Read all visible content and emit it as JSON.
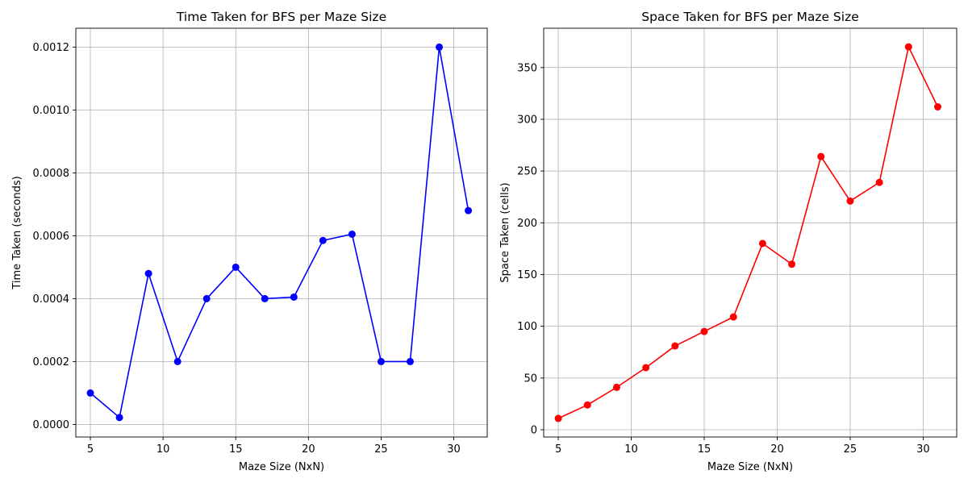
{
  "chart_data": [
    {
      "type": "line",
      "title": "Time Taken for BFS per Maze Size",
      "xlabel": "Maze Size (NxN)",
      "ylabel": "Time Taken (seconds)",
      "xlim": [
        4,
        32.3
      ],
      "ylim": [
        -4e-05,
        0.00126
      ],
      "xticks": [
        5,
        10,
        15,
        20,
        25,
        30
      ],
      "xtick_labels": [
        "5",
        "10",
        "15",
        "20",
        "25",
        "30"
      ],
      "yticks": [
        0,
        0.0002,
        0.0004,
        0.0006,
        0.0008,
        0.001,
        0.0012
      ],
      "ytick_labels": [
        "0.0000",
        "0.0002",
        "0.0004",
        "0.0006",
        "0.0008",
        "0.0010",
        "0.0012"
      ],
      "grid": true,
      "series": [
        {
          "color": "#0000ff",
          "marker": "circle",
          "x": [
            5,
            7,
            9,
            11,
            13,
            15,
            17,
            19,
            21,
            23,
            25,
            27,
            29,
            31
          ],
          "y": [
            0.0001,
            2.2e-05,
            0.00048,
            0.0002,
            0.0004,
            0.0005,
            0.0004,
            0.000405,
            0.000585,
            0.000605,
            0.0002,
            0.0002,
            0.0012,
            0.00068
          ]
        }
      ]
    },
    {
      "type": "line",
      "title": "Space Taken for BFS per Maze Size",
      "xlabel": "Maze Size (NxN)",
      "ylabel": "Space Taken (cells)",
      "xlim": [
        4,
        32.3
      ],
      "ylim": [
        -7,
        388
      ],
      "xticks": [
        5,
        10,
        15,
        20,
        25,
        30
      ],
      "xtick_labels": [
        "5",
        "10",
        "15",
        "20",
        "25",
        "30"
      ],
      "yticks": [
        0,
        50,
        100,
        150,
        200,
        250,
        300,
        350
      ],
      "ytick_labels": [
        "0",
        "50",
        "100",
        "150",
        "200",
        "250",
        "300",
        "350"
      ],
      "grid": true,
      "series": [
        {
          "color": "#ff0000",
          "marker": "circle",
          "x": [
            5,
            7,
            9,
            11,
            13,
            15,
            17,
            19,
            21,
            23,
            25,
            27,
            29,
            31
          ],
          "y": [
            11,
            24,
            41,
            60,
            81,
            95,
            109,
            180,
            160,
            264,
            221,
            239,
            370,
            312
          ]
        }
      ]
    }
  ]
}
